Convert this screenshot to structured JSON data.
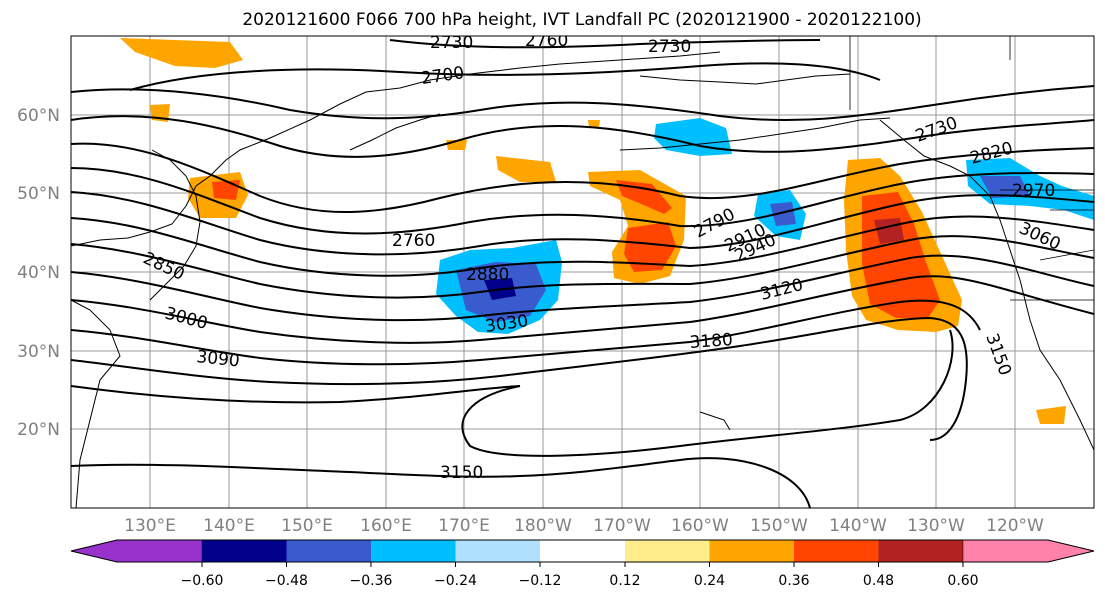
{
  "title": "2020121600 F066 700 hPa height, IVT Landfall PC (2020121900 - 2020122100)",
  "lat_labels": [
    "60°N",
    "50°N",
    "40°N",
    "30°N",
    "20°N"
  ],
  "lon_labels": [
    "130°E",
    "140°E",
    "150°E",
    "160°E",
    "170°E",
    "180°W",
    "170°W",
    "160°W",
    "150°W",
    "140°W",
    "130°W",
    "120°W"
  ],
  "contour_labels": [
    "2730",
    "2760",
    "2730",
    "2700",
    "2730",
    "2820",
    "2970",
    "3060",
    "2790",
    "2910",
    "2940",
    "3120",
    "3150",
    "3180",
    "2760",
    "2880",
    "3030",
    "2850",
    "3000",
    "3090",
    "3150"
  ],
  "colorbar": {
    "ticks": [
      "−0.60",
      "−0.48",
      "−0.36",
      "−0.24",
      "−0.12",
      "0.12",
      "0.24",
      "0.36",
      "0.48",
      "0.60"
    ],
    "colors": [
      "#9932cc",
      "#00008b",
      "#3a5bcd",
      "#00bfff",
      "#b0e2ff",
      "#ffffff",
      "#ffec8b",
      "#ffa500",
      "#ff4500",
      "#b22222",
      "#ff82ab"
    ]
  },
  "map_colors": {
    "ocean": "#ffffff",
    "grid": "#9a9a9a",
    "coast": "#000000",
    "contour": "#000000"
  }
}
